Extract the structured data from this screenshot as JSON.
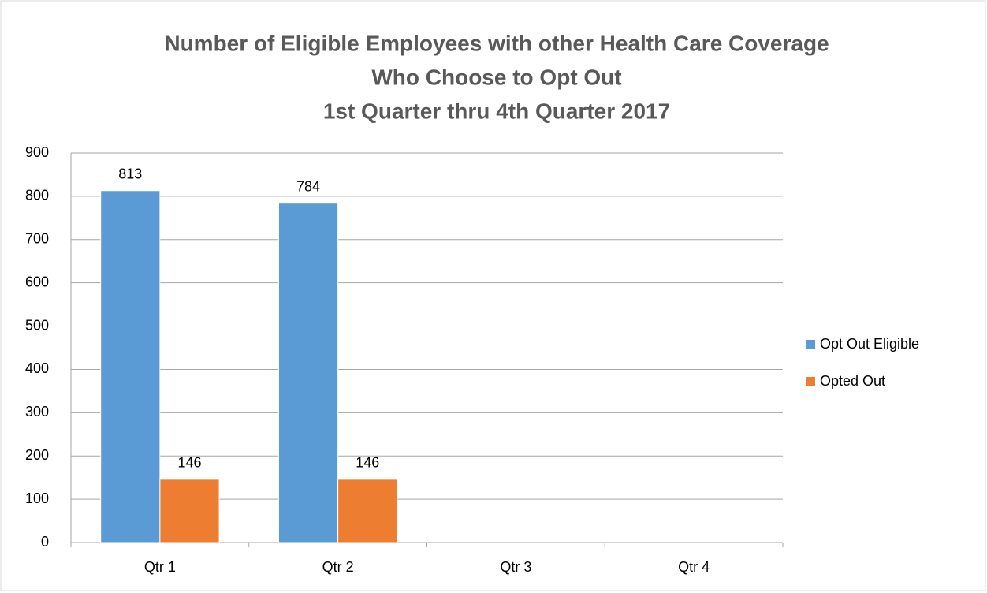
{
  "chart_data": {
    "type": "bar",
    "title": [
      "Number of Eligible Employees with other Health Care Coverage",
      "Who Choose to Opt Out",
      "1st Quarter thru 4th Quarter 2017"
    ],
    "categories": [
      "Qtr 1",
      "Qtr 2",
      "Qtr 3",
      "Qtr 4"
    ],
    "series": [
      {
        "name": "Opt Out Eligible",
        "color": "#5b9bd5",
        "values": [
          813,
          784,
          null,
          null
        ]
      },
      {
        "name": "Opted Out",
        "color": "#ed7d31",
        "values": [
          146,
          146,
          null,
          null
        ]
      }
    ],
    "ylim": [
      0,
      900
    ],
    "yticks": [
      0,
      100,
      200,
      300,
      400,
      500,
      600,
      700,
      800,
      900
    ],
    "grid": true,
    "legend": "right"
  }
}
